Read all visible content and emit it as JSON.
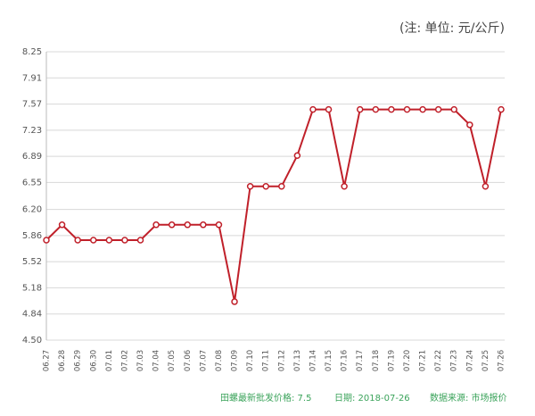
{
  "chart_data": {
    "type": "line",
    "unit_note": "(注: 单位: 元/公斤)",
    "categories": [
      "06.27",
      "06.28",
      "06.29",
      "06.30",
      "07.01",
      "07.02",
      "07.03",
      "07.04",
      "07.05",
      "07.06",
      "07.07",
      "07.08",
      "07.09",
      "07.10",
      "07.11",
      "07.12",
      "07.13",
      "07.14",
      "07.15",
      "07.16",
      "07.17",
      "07.18",
      "07.19",
      "07.20",
      "07.21",
      "07.22",
      "07.23",
      "07.24",
      "07.25",
      "07.26"
    ],
    "values": [
      5.8,
      6.0,
      5.8,
      5.8,
      5.8,
      5.8,
      5.8,
      6.0,
      6.0,
      6.0,
      6.0,
      6.0,
      5.0,
      6.5,
      6.5,
      6.5,
      6.9,
      7.5,
      7.5,
      6.5,
      7.5,
      7.5,
      7.5,
      7.5,
      7.5,
      7.5,
      7.5,
      7.3,
      6.5,
      7.5
    ],
    "color": "#c0202a",
    "ylim": [
      4.5,
      8.25
    ],
    "yticks": [
      {
        "value": 4.5,
        "label": "4.50"
      },
      4.84,
      5.18,
      5.52,
      5.86,
      {
        "value": 6.2,
        "label": "6.20"
      },
      6.55,
      6.89,
      7.23,
      7.57,
      7.91,
      8.25
    ],
    "grid": true,
    "footer": [
      "田螺最新批发价格: 7.5",
      "日期: 2018-07-26",
      "数据来源: 市场报价"
    ]
  }
}
